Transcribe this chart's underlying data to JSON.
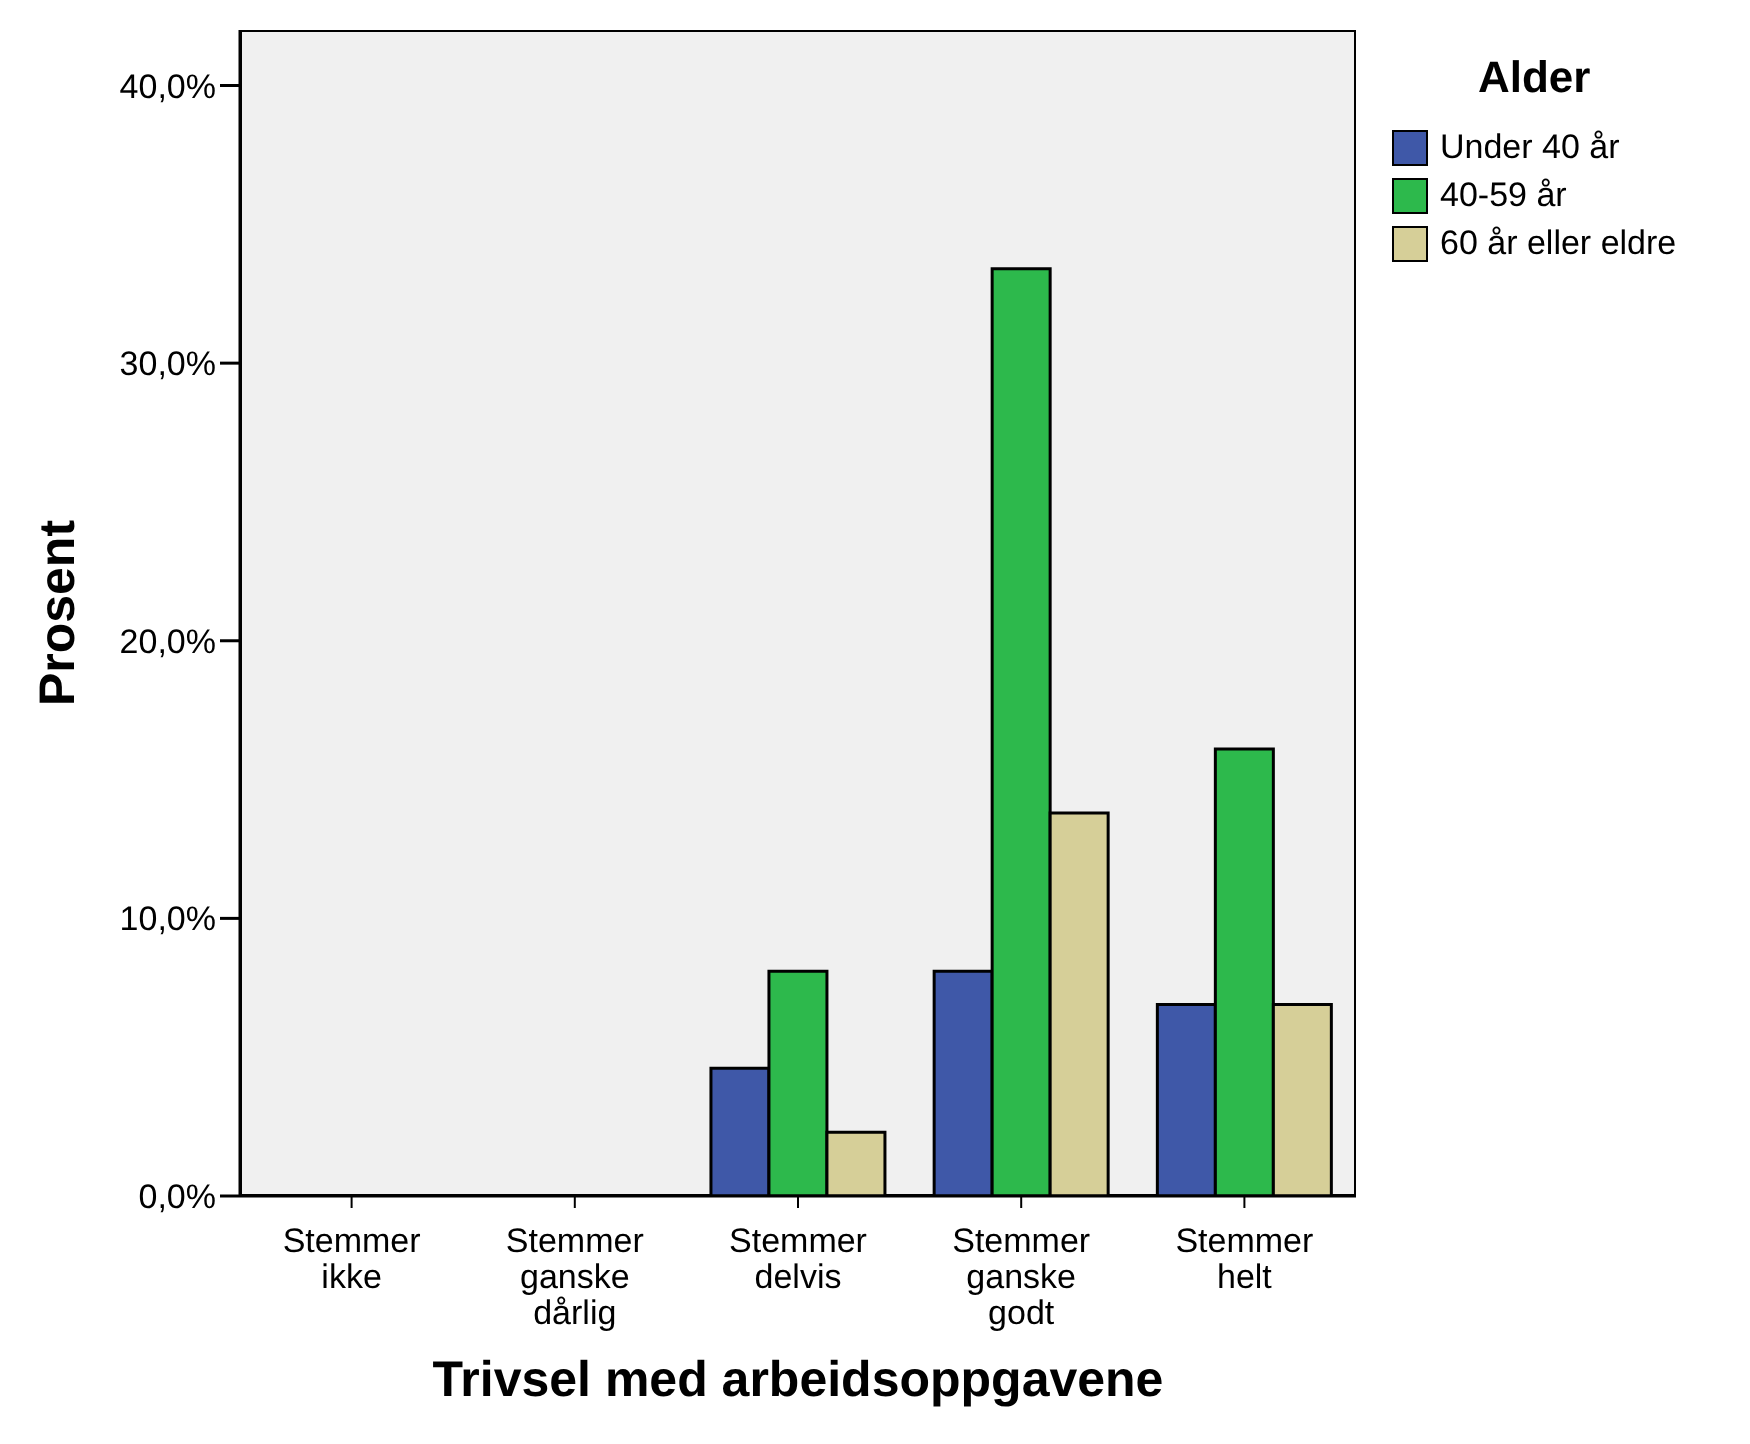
{
  "chart_data": {
    "type": "bar",
    "xlabel": "Trivsel med arbeidsoppgavene",
    "ylabel": "Prosent",
    "legend_title": "Alder",
    "legend": "top right",
    "categories": [
      "Stemmer ikke",
      "Stemmer ganske dårlig",
      "Stemmer delvis",
      "Stemmer ganske godt",
      "Stemmer helt"
    ],
    "series": [
      {
        "name": "Under 40 år",
        "color": "#3f58a8",
        "values": [
          0,
          0,
          4.6,
          8.1,
          6.9
        ]
      },
      {
        "name": "40-59 år",
        "color": "#2db94c",
        "values": [
          0,
          0,
          8.1,
          33.4,
          16.1
        ]
      },
      {
        "name": "60 år eller eldre",
        "color": "#d6cf98",
        "values": [
          0,
          0,
          2.3,
          13.8,
          6.9
        ]
      }
    ],
    "ylim": [
      0,
      42
    ],
    "yticks": [
      {
        "value": 0,
        "label": "0,0%"
      },
      {
        "value": 10,
        "label": "10,0%"
      },
      {
        "value": 20,
        "label": "20,0%"
      },
      {
        "value": 30,
        "label": "30,0%"
      },
      {
        "value": 40,
        "label": "40,0%"
      }
    ]
  }
}
